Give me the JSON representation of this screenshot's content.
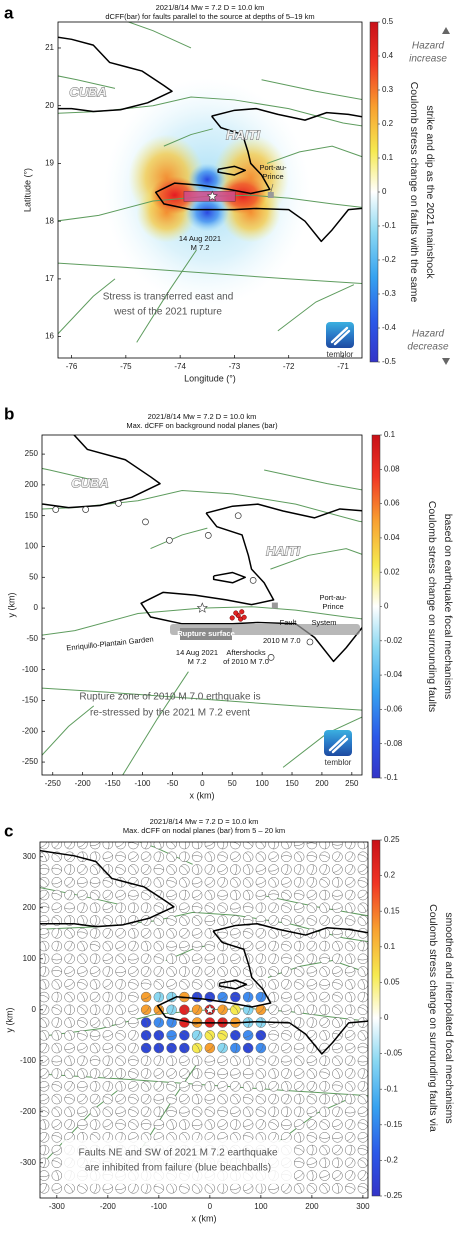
{
  "panels": [
    {
      "label": "a",
      "title": "2021/8/14  Mw = 7.2  D = 10.0 km",
      "subtitle": "dCFF(bar) for faults parallel to the source at depths of 5–19 km",
      "xlabel": "Longitude (°)",
      "ylabel": "Latitude (°)",
      "xlim": [
        -76.25,
        -70.65
      ],
      "ylim": [
        15.63,
        21.45
      ],
      "xticks": [
        -76,
        -75,
        -74,
        -73,
        -72,
        -71
      ],
      "yticks": [
        16,
        17,
        18,
        19,
        20,
        21
      ],
      "colorbar": {
        "label": [
          "Coulomb stress change on faults with the same",
          "strike and dip as the 2021 mainshock"
        ],
        "clim": [
          -0.5,
          0.5
        ],
        "ticks": [
          0.5,
          0.4,
          0.3,
          0.2,
          0.1,
          0,
          -0.1,
          -0.2,
          -0.3,
          -0.4,
          -0.5
        ]
      },
      "annotations": [
        [
          "CUBA"
        ],
        [
          "HAITI"
        ],
        [
          "Port-au-",
          "Prince"
        ],
        [
          "14 Aug 2021",
          "M 7.2"
        ],
        [
          "Stress is transferred east and",
          "west of the 2021 rupture"
        ],
        [
          "Hazard",
          "increase"
        ],
        [
          "Hazard",
          "decrease"
        ]
      ],
      "logo": "temblor"
    },
    {
      "label": "b",
      "title": "2021/8/14  Mw = 7.2  D = 10.0 km",
      "subtitle": "Max. dCFF on background nodal planes (bar)",
      "xlabel": "x (km)",
      "ylabel": "y (km)",
      "xlim": [
        -268,
        267
      ],
      "ylim": [
        -271,
        281
      ],
      "xticks": [
        -250,
        -200,
        -150,
        -100,
        -50,
        0,
        50,
        100,
        150,
        200,
        250
      ],
      "yticks": [
        -250,
        -200,
        -150,
        -100,
        -50,
        0,
        50,
        100,
        150,
        200,
        250
      ],
      "colorbar": {
        "label": [
          "Coulomb stress change on surrounding faults",
          "based on earthquake focal mechanisms"
        ],
        "clim": [
          -0.1,
          0.1
        ],
        "ticks": [
          0.1,
          0.08,
          0.06,
          0.04,
          0.02,
          0,
          -0.02,
          -0.04,
          -0.06,
          -0.08,
          -0.1
        ]
      },
      "annotations": [
        [
          "CUBA"
        ],
        [
          "HAITI"
        ],
        [
          "Port-au-",
          "Prince"
        ],
        [
          "Fault"
        ],
        [
          "System"
        ],
        [
          "Enriquillo-Plantain Garden"
        ],
        [
          "Rupture surface"
        ],
        [
          "2010 M 7.0"
        ],
        [
          "14 Aug 2021",
          "M 7.2"
        ],
        [
          "Aftershocks",
          "of 2010 M 7.0"
        ],
        [
          "Rupture zone of 2010 M 7.0 erthquake is",
          "re-stressed by the 2021 M 7.2 event"
        ]
      ],
      "logo": "temblor"
    },
    {
      "label": "c",
      "title": "2021/8/14  Mw = 7.2  D = 10.0 km",
      "subtitle": "Max. dCFF on nodal planes (bar) from 5 – 20 km",
      "xlabel": "x (km)",
      "ylabel": "y (km)",
      "xlim": [
        -333,
        310
      ],
      "ylim": [
        -369,
        329
      ],
      "xticks": [
        -300,
        -200,
        -100,
        0,
        100,
        200,
        300
      ],
      "yticks": [
        -300,
        -200,
        -100,
        0,
        100,
        200,
        300
      ],
      "colorbar": {
        "label": [
          "Coulomb stress change on surrounding faults via",
          "smoothed and interpolated focal mechanisms"
        ],
        "clim": [
          -0.25,
          0.25
        ],
        "ticks": [
          0.25,
          0.2,
          0.15,
          0.1,
          0.05,
          0,
          -0.05,
          -0.1,
          -0.15,
          -0.2,
          -0.25
        ]
      },
      "annotations": [
        [
          "Faults NE and SW of 2021 M 7.2 earthquake",
          "are inhibited from failure (blue beachballs)"
        ]
      ]
    }
  ]
}
